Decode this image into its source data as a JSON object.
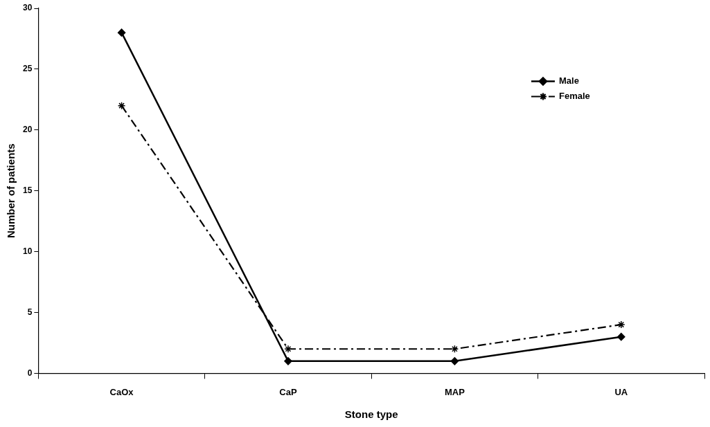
{
  "chart_data": {
    "type": "line",
    "xlabel": "Stone type",
    "ylabel": "Number of patients",
    "categories": [
      "CaOx",
      "CaP",
      "MAP",
      "UA"
    ],
    "series": [
      {
        "name": "Male",
        "color": "#000000",
        "values": [
          28,
          1,
          1,
          3
        ],
        "marker": "diamond",
        "line_style": "solid"
      },
      {
        "name": "Female",
        "color": "#000000",
        "values": [
          22,
          2,
          2,
          4
        ],
        "marker": "cross",
        "line_style": "dashdot"
      }
    ],
    "ylim": [
      0,
      30
    ],
    "yticks": [
      0,
      5,
      10,
      15,
      20,
      25,
      30
    ],
    "legend": "top right"
  }
}
